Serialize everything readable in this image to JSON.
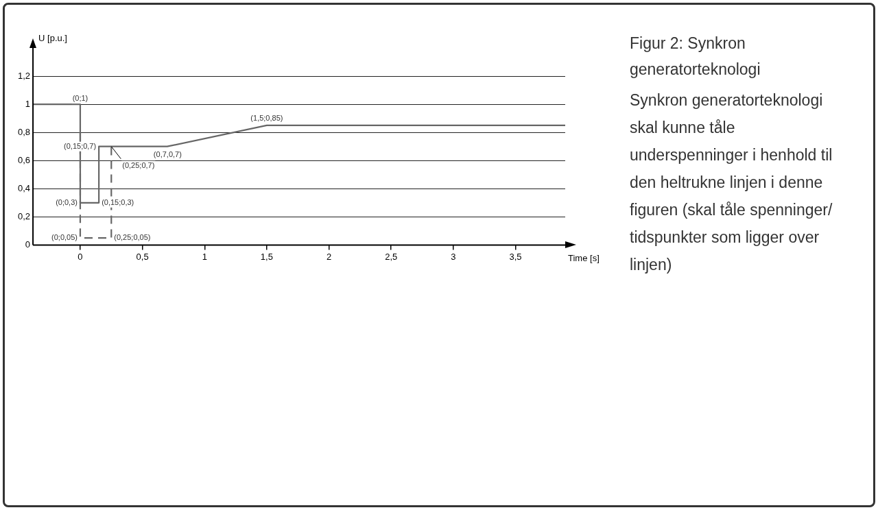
{
  "chart_data": {
    "type": "line",
    "title": "Figur 2: Synkron generatorteknologi",
    "xlabel": "Time [s]",
    "ylabel": "U [p.u.]",
    "xlim": [
      -0.38,
      3.9
    ],
    "ylim": [
      0,
      1.4
    ],
    "xticks": [
      {
        "value": 0,
        "label": "0"
      },
      {
        "value": 0.5,
        "label": "0,5"
      },
      {
        "value": 1,
        "label": "1"
      },
      {
        "value": 1.5,
        "label": "1,5"
      },
      {
        "value": 2,
        "label": "2"
      },
      {
        "value": 2.5,
        "label": "2,5"
      },
      {
        "value": 3,
        "label": "3"
      },
      {
        "value": 3.5,
        "label": "3,5"
      }
    ],
    "yticks": [
      {
        "value": 0,
        "label": "0"
      },
      {
        "value": 0.2,
        "label": "0,2"
      },
      {
        "value": 0.4,
        "label": "0,4"
      },
      {
        "value": 0.6,
        "label": "0,6"
      },
      {
        "value": 0.8,
        "label": "0,8"
      },
      {
        "value": 1,
        "label": "1"
      },
      {
        "value": 1.2,
        "label": "1,2"
      }
    ],
    "grid": "y",
    "marker": "none",
    "legend": false,
    "series": [
      {
        "color": "#666666",
        "line_style": "solid",
        "x": [
          -0.38,
          0,
          0,
          0.15,
          0.15,
          0.7,
          1.5,
          3.9
        ],
        "values": [
          1,
          1,
          0.3,
          0.3,
          0.7,
          0.7,
          0.85,
          0.85
        ]
      },
      {
        "color": "#666666",
        "line_style": "dashed",
        "x": [
          0,
          0,
          0.25,
          0.25
        ],
        "values": [
          0.8,
          0.05,
          0.05,
          0.7
        ]
      }
    ],
    "annotations": [
      {
        "text": "(0;1)",
        "x": 0,
        "y": 1
      },
      {
        "text": "(0,15;0,7)",
        "x": 0.15,
        "y": 0.7
      },
      {
        "text": "(0;0,3)",
        "x": 0,
        "y": 0.3
      },
      {
        "text": "(0,15;0,3)",
        "x": 0.15,
        "y": 0.3
      },
      {
        "text": "(0;0,05)",
        "x": 0,
        "y": 0.05
      },
      {
        "text": "(0,25;0,05)",
        "x": 0.25,
        "y": 0.05
      },
      {
        "text": "(0,25;0,7)",
        "x": 0.25,
        "y": 0.7
      },
      {
        "text": "(0,7,0,7)",
        "x": 0.7,
        "y": 0.7
      },
      {
        "text": "(1,5;0,85)",
        "x": 1.5,
        "y": 0.85
      },
      "Synkron generatorteknologi skal kunne tåle underspenninger i henhold til den heltrukne linjen i denne figuren (skal tåle spenninger/ tidspunkter som ligger over linjen)"
    ]
  }
}
